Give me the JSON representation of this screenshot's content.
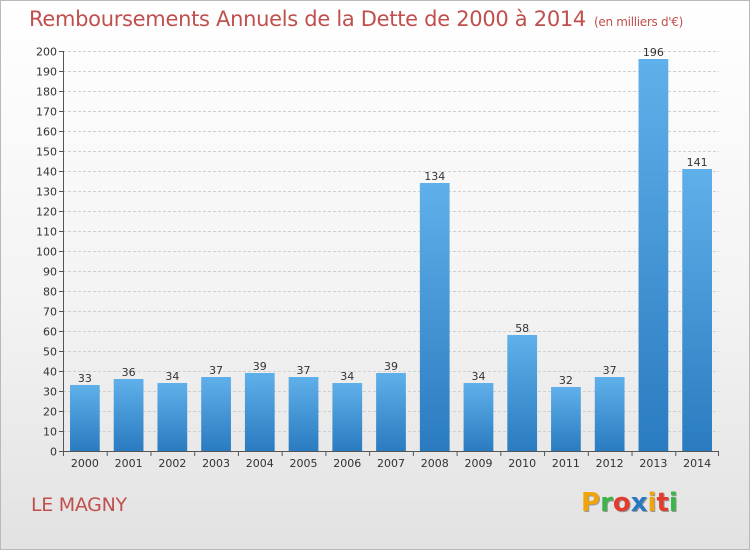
{
  "header": {
    "title": "Remboursements Annuels de la Dette de 2000 à 2014",
    "unit_note": "(en milliers d'€)"
  },
  "footer": {
    "commune": "LE MAGNY",
    "brand": "Proxiti",
    "brand_colors": [
      "#f0a30a",
      "#3ab54a",
      "#e23c2f",
      "#2b78c2",
      "#f0a30a",
      "#e23c2f",
      "#3ab54a"
    ]
  },
  "chart_data": {
    "type": "bar",
    "title": "Remboursements Annuels de la Dette de 2000 à 2014",
    "subtitle": "(en milliers d'€)",
    "xlabel": "",
    "ylabel": "",
    "categories": [
      "2000",
      "2001",
      "2002",
      "2003",
      "2004",
      "2005",
      "2006",
      "2007",
      "2008",
      "2009",
      "2010",
      "2011",
      "2012",
      "2013",
      "2014"
    ],
    "values": [
      33,
      36,
      34,
      37,
      39,
      37,
      34,
      39,
      134,
      34,
      58,
      32,
      37,
      196,
      141
    ],
    "ylim": [
      0,
      200
    ],
    "ytick_step": 10,
    "grid": true,
    "bar_color_top": "#5fb0ea",
    "bar_color_bottom": "#2a7bc0",
    "value_labels": true
  }
}
